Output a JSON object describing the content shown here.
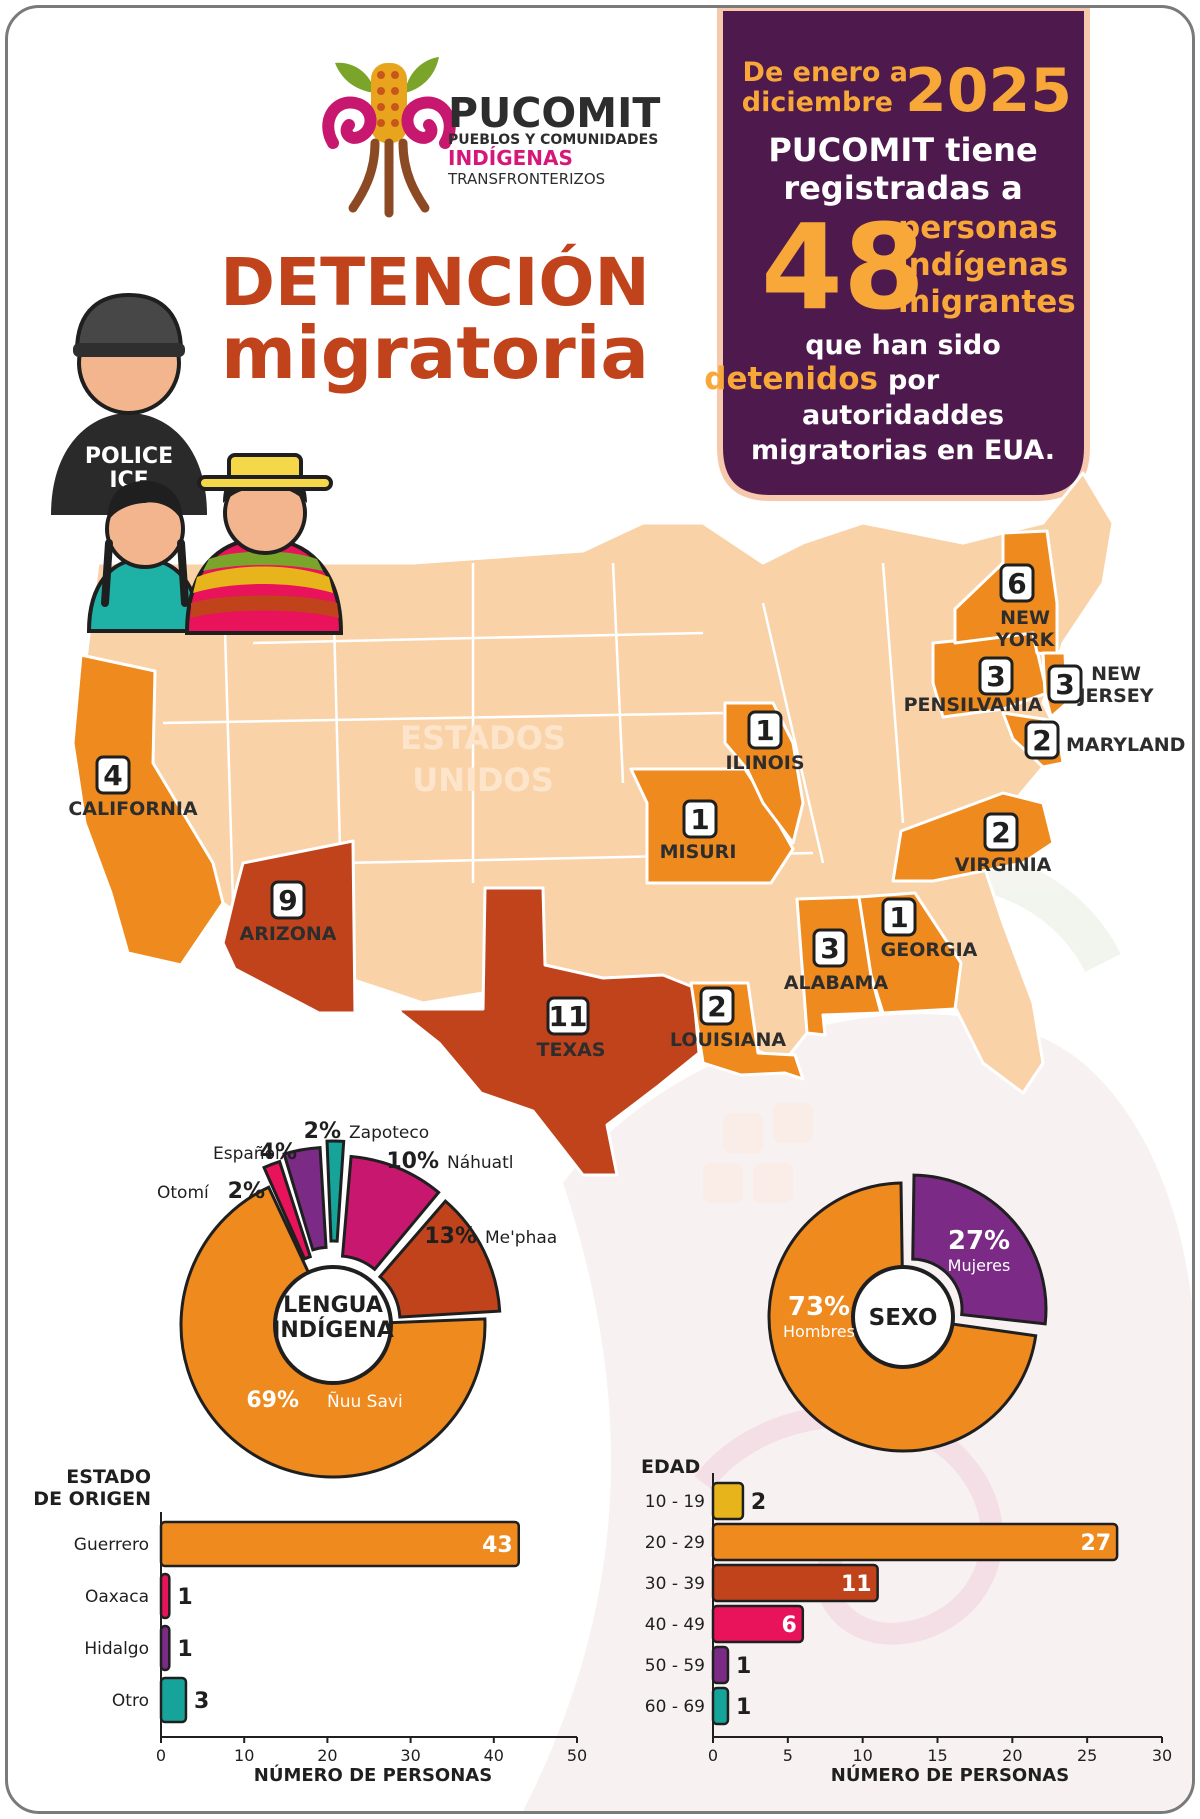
{
  "logo": {
    "name": "PUCOMIT",
    "line1": "PUEBLOS Y COMUNIDADES",
    "line2": "INDÍGENAS",
    "line3": "TRANSFRONTERIZOS"
  },
  "title": {
    "line1": "DETENCIÓN",
    "line2": "migratoria"
  },
  "illustration": {
    "vest_line1": "POLICE",
    "vest_line2": "ICE"
  },
  "info_box": {
    "period_line1": "De enero a",
    "period_line2": "diciembre",
    "year": "2025",
    "line1": "PUCOMIT tiene",
    "line2": "registradas a",
    "count": "48",
    "count_l1": "personas",
    "count_l2": "indígenas",
    "count_l3": "migrantes",
    "line3": "que han sido",
    "detenidos": "detenidos",
    "por": "por",
    "line4": "autoridaddes",
    "line5": "migratorias en EUA."
  },
  "map": {
    "country_l1": "ESTADOS",
    "country_l2": "UNIDOS",
    "states": [
      {
        "count": "4",
        "l1": "CALIFORNIA",
        "l2": ""
      },
      {
        "count": "9",
        "l1": "ARIZONA",
        "l2": ""
      },
      {
        "count": "11",
        "l1": "TEXAS",
        "l2": ""
      },
      {
        "count": "2",
        "l1": "LOUISIANA",
        "l2": ""
      },
      {
        "count": "1",
        "l1": "MISURI",
        "l2": ""
      },
      {
        "count": "1",
        "l1": "ILINOIS",
        "l2": ""
      },
      {
        "count": "3",
        "l1": "ALABAMA",
        "l2": ""
      },
      {
        "count": "1",
        "l1": "GEORGIA",
        "l2": ""
      },
      {
        "count": "2",
        "l1": "VIRGINIA",
        "l2": ""
      },
      {
        "count": "3",
        "l1": "PENSILVANIA",
        "l2": ""
      },
      {
        "count": "6",
        "l1": "NEW",
        "l2": "YORK"
      },
      {
        "count": "3",
        "l1": "NEW",
        "l2": "JERSEY"
      },
      {
        "count": "2",
        "l1": "MARYLAND",
        "l2": ""
      }
    ],
    "colors": {
      "light": "#f9d2a8",
      "medium": "#ee8a1e",
      "dark": "#c0431c"
    }
  },
  "chart_data": [
    {
      "type": "pie",
      "title_l1": "LENGUA",
      "title_l2": "INDÍGENA",
      "slices": [
        {
          "label": "Ñuu Savi",
          "value": 69,
          "display": "69%",
          "color": "#ee8a1e"
        },
        {
          "label": "Me'phaa",
          "value": 13,
          "display": "13%",
          "color": "#c0431c"
        },
        {
          "label": "Náhuatl",
          "value": 10,
          "display": "10%",
          "color": "#c8176e"
        },
        {
          "label": "Zapoteco",
          "value": 2,
          "display": "2%",
          "color": "#16a39a"
        },
        {
          "label": "Español",
          "value": 4,
          "display": "4%",
          "color": "#7b2b86"
        },
        {
          "label": "Otomí",
          "value": 2,
          "display": "2%",
          "color": "#e8135a"
        }
      ]
    },
    {
      "type": "pie",
      "title": "SEXO",
      "slices": [
        {
          "label": "Mujeres",
          "value": 27,
          "display": "27%",
          "color": "#7b2b86"
        },
        {
          "label": "Hombres",
          "value": 73,
          "display": "73%",
          "color": "#ee8a1e"
        }
      ]
    },
    {
      "type": "bar",
      "orientation": "horizontal",
      "title_l1": "ESTADO",
      "title_l2": "DE ORIGEN",
      "categories": [
        "Guerrero",
        "Oaxaca",
        "Hidalgo",
        "Otro"
      ],
      "values": [
        43,
        1,
        1,
        3
      ],
      "colors": [
        "#ee8a1e",
        "#e8135a",
        "#7b2b86",
        "#16a39a"
      ],
      "xlabel": "NÚMERO DE PERSONAS",
      "xlim": [
        0,
        50
      ],
      "ticks": [
        "0",
        "10",
        "20",
        "30",
        "40",
        "50"
      ]
    },
    {
      "type": "bar",
      "orientation": "horizontal",
      "title": "EDAD",
      "categories": [
        "10 - 19",
        "20 - 29",
        "30 - 39",
        "40 - 49",
        "50 - 59",
        "60 - 69"
      ],
      "values": [
        2,
        27,
        11,
        6,
        1,
        1
      ],
      "colors": [
        "#e8b41c",
        "#ee8a1e",
        "#c0431c",
        "#e8135a",
        "#7b2b86",
        "#16a39a"
      ],
      "xlabel": "NÚMERO DE PERSONAS",
      "xlim": [
        0,
        30
      ],
      "ticks": [
        "0",
        "5",
        "10",
        "15",
        "20",
        "25",
        "30"
      ]
    }
  ]
}
